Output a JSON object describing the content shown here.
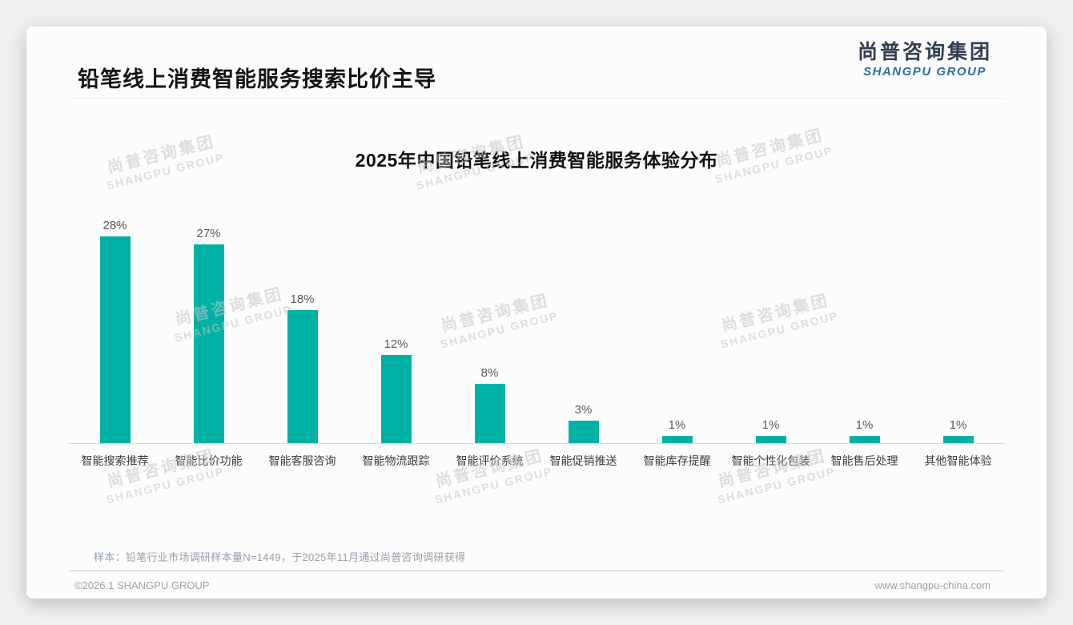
{
  "page_title": "铅笔线上消费智能服务搜索比价主导",
  "logo": {
    "name_cn": "尚普咨询集团",
    "name_en": "SHANGPU GROUP",
    "cn_color": "#323f52",
    "en_color": "#2e6ba4"
  },
  "watermark": {
    "line1": "尚普咨询集团",
    "line2": "SHANGPU GROUP"
  },
  "chart_data": {
    "type": "bar",
    "title": "2025年中国铅笔线上消费智能服务体验分布",
    "categories": [
      "智能搜索推荐",
      "智能比价功能",
      "智能客服咨询",
      "智能物流跟踪",
      "智能评价系统",
      "智能促销推送",
      "智能库存提醒",
      "智能个性化包装",
      "智能售后处理",
      "其他智能体验"
    ],
    "values": [
      28,
      27,
      18,
      12,
      8,
      3,
      1,
      1,
      1,
      1
    ],
    "unit": "%",
    "value_labels": [
      "28%",
      "27%",
      "18%",
      "12%",
      "8%",
      "3%",
      "1%",
      "1%",
      "1%",
      "1%"
    ],
    "bar_color": "#00b2a6",
    "xlabel": "",
    "ylabel": "",
    "ylim": [
      0,
      30
    ],
    "grid": false,
    "legend": null
  },
  "footnote": "样本：铅笔行业市场调研样本量N=1449，于2025年11月通过尚普咨询调研获得",
  "footer": {
    "left": "©2026.1 SHANGPU GROUP",
    "right": "www.shangpu-china.com"
  }
}
